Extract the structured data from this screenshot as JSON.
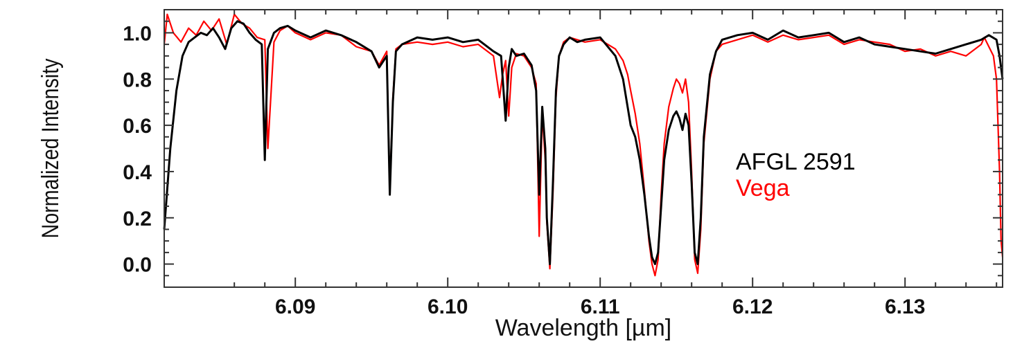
{
  "chart_data": {
    "type": "line",
    "xlabel": "Wavelength [µm]",
    "ylabel": "Normalized Intensity",
    "xlim": [
      6.0814,
      6.1364
    ],
    "ylim": [
      -0.1,
      1.1
    ],
    "xticks": [
      6.09,
      6.1,
      6.11,
      6.12,
      6.13
    ],
    "xtick_labels": [
      "6.09",
      "6.10",
      "6.11",
      "6.12",
      "6.13"
    ],
    "yticks": [
      0.0,
      0.2,
      0.4,
      0.6,
      0.8,
      1.0
    ],
    "ytick_labels": [
      "0.0",
      "0.2",
      "0.4",
      "0.6",
      "0.8",
      "1.0"
    ],
    "grid": false,
    "legend_position": "center-right",
    "series": [
      {
        "name": "AFGL 2591",
        "color": "#000000",
        "x": [
          6.0814,
          6.0818,
          6.0822,
          6.0826,
          6.083,
          6.0834,
          6.0838,
          6.0842,
          6.0846,
          6.085,
          6.0854,
          6.0858,
          6.0862,
          6.0866,
          6.087,
          6.0874,
          6.0878,
          6.088,
          6.0882,
          6.0886,
          6.089,
          6.0895,
          6.09,
          6.091,
          6.092,
          6.093,
          6.094,
          6.095,
          6.0955,
          6.096,
          6.0962,
          6.0964,
          6.0966,
          6.097,
          6.098,
          6.099,
          6.1,
          6.101,
          6.102,
          6.103,
          6.1035,
          6.1038,
          6.104,
          6.1042,
          6.1045,
          6.105,
          6.1055,
          6.1058,
          6.106,
          6.1062,
          6.1064,
          6.1065,
          6.1067,
          6.1069,
          6.1071,
          6.1073,
          6.1076,
          6.108,
          6.1085,
          6.109,
          6.11,
          6.111,
          6.1115,
          6.1118,
          6.112,
          6.1123,
          6.1126,
          6.1129,
          6.1132,
          6.1134,
          6.1136,
          6.1138,
          6.114,
          6.1142,
          6.1145,
          6.1148,
          6.115,
          6.1152,
          6.1154,
          6.1156,
          6.1158,
          6.116,
          6.1162,
          6.1164,
          6.1166,
          6.1168,
          6.1172,
          6.1176,
          6.118,
          6.119,
          6.12,
          6.121,
          6.122,
          6.123,
          6.124,
          6.125,
          6.126,
          6.127,
          6.128,
          6.129,
          6.13,
          6.131,
          6.132,
          6.133,
          6.134,
          6.135,
          6.1355,
          6.136,
          6.1362,
          6.1364
        ],
        "y": [
          0.15,
          0.5,
          0.75,
          0.9,
          0.96,
          0.98,
          1.0,
          0.99,
          1.02,
          0.98,
          0.93,
          1.02,
          1.05,
          1.04,
          1.0,
          0.97,
          0.95,
          0.45,
          0.93,
          1.0,
          1.02,
          1.03,
          1.01,
          0.98,
          1.01,
          0.99,
          0.96,
          0.92,
          0.85,
          0.9,
          0.3,
          0.7,
          0.92,
          0.95,
          0.98,
          0.97,
          0.98,
          0.96,
          0.97,
          0.92,
          0.9,
          0.62,
          0.85,
          0.93,
          0.9,
          0.91,
          0.86,
          0.75,
          0.3,
          0.68,
          0.5,
          0.2,
          0.0,
          0.35,
          0.75,
          0.9,
          0.95,
          0.98,
          0.96,
          0.97,
          0.98,
          0.9,
          0.8,
          0.68,
          0.6,
          0.55,
          0.45,
          0.3,
          0.12,
          0.03,
          0.0,
          0.05,
          0.25,
          0.45,
          0.58,
          0.64,
          0.66,
          0.63,
          0.58,
          0.65,
          0.6,
          0.35,
          0.05,
          0.0,
          0.2,
          0.55,
          0.82,
          0.92,
          0.97,
          0.99,
          1.0,
          0.97,
          1.01,
          0.98,
          0.99,
          1.0,
          0.96,
          0.98,
          0.95,
          0.94,
          0.93,
          0.92,
          0.91,
          0.93,
          0.95,
          0.97,
          0.99,
          0.97,
          0.9,
          0.8
        ]
      },
      {
        "name": "Vega",
        "color": "#ff0000",
        "x": [
          6.0814,
          6.0816,
          6.082,
          6.0825,
          6.083,
          6.0835,
          6.084,
          6.0845,
          6.085,
          6.0855,
          6.086,
          6.0865,
          6.087,
          6.0875,
          6.088,
          6.0882,
          6.0886,
          6.089,
          6.0895,
          6.09,
          6.091,
          6.092,
          6.093,
          6.094,
          6.095,
          6.0955,
          6.096,
          6.0962,
          6.0964,
          6.0966,
          6.097,
          6.098,
          6.099,
          6.1,
          6.101,
          6.102,
          6.103,
          6.1034,
          6.1036,
          6.1038,
          6.104,
          6.1042,
          6.1045,
          6.105,
          6.1055,
          6.1058,
          6.106,
          6.1062,
          6.1064,
          6.1065,
          6.1067,
          6.1069,
          6.1071,
          6.1073,
          6.1076,
          6.108,
          6.1085,
          6.109,
          6.11,
          6.111,
          6.1115,
          6.1118,
          6.112,
          6.1123,
          6.1126,
          6.1129,
          6.1132,
          6.1134,
          6.1136,
          6.1138,
          6.114,
          6.1142,
          6.1145,
          6.1148,
          6.115,
          6.1152,
          6.1154,
          6.1156,
          6.1158,
          6.116,
          6.1162,
          6.1164,
          6.1166,
          6.1168,
          6.1172,
          6.1176,
          6.118,
          6.119,
          6.12,
          6.121,
          6.122,
          6.123,
          6.124,
          6.125,
          6.126,
          6.127,
          6.128,
          6.129,
          6.13,
          6.131,
          6.132,
          6.133,
          6.134,
          6.135,
          6.1352,
          6.1355,
          6.1358,
          6.136,
          6.1362,
          6.1363,
          6.1364
        ],
        "y": [
          0.95,
          1.08,
          1.0,
          0.96,
          1.02,
          0.99,
          1.05,
          1.01,
          1.06,
          0.95,
          1.08,
          1.04,
          1.02,
          0.98,
          0.97,
          0.5,
          0.96,
          1.01,
          1.03,
          1.0,
          0.97,
          1.0,
          0.99,
          0.94,
          0.92,
          0.86,
          0.92,
          0.32,
          0.72,
          0.93,
          0.95,
          0.96,
          0.95,
          0.96,
          0.94,
          0.95,
          0.9,
          0.72,
          0.82,
          0.88,
          0.64,
          0.85,
          0.91,
          0.9,
          0.85,
          0.78,
          0.12,
          0.65,
          0.45,
          0.18,
          -0.02,
          0.3,
          0.72,
          0.9,
          0.96,
          0.98,
          0.97,
          0.96,
          0.97,
          0.93,
          0.88,
          0.82,
          0.75,
          0.65,
          0.52,
          0.32,
          0.1,
          0.0,
          -0.05,
          0.02,
          0.3,
          0.52,
          0.68,
          0.76,
          0.8,
          0.78,
          0.74,
          0.8,
          0.7,
          0.4,
          0.02,
          -0.04,
          0.15,
          0.52,
          0.8,
          0.92,
          0.95,
          0.97,
          0.99,
          0.96,
          0.99,
          0.97,
          0.98,
          0.99,
          0.95,
          0.97,
          0.96,
          0.95,
          0.92,
          0.93,
          0.9,
          0.92,
          0.9,
          0.95,
          0.98,
          0.94,
          0.9,
          0.8,
          0.4,
          0.1,
          0.03
        ]
      }
    ]
  }
}
